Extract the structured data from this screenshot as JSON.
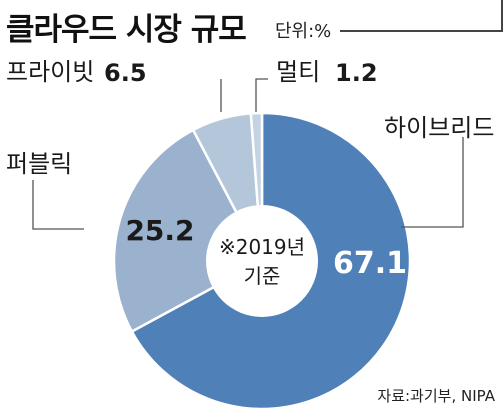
{
  "header": {
    "title": "클라우드 시장 규모",
    "unit": "단위:%"
  },
  "center": {
    "line1": "※2019년",
    "line2": "기준"
  },
  "source": "자료:과기부, NIPA",
  "colors": {
    "hybrid": "#4f81b8",
    "public": "#9ab2ce",
    "private": "#b4c6da",
    "multi": "#c4d3e3"
  },
  "chart_data": {
    "type": "pie",
    "donut": true,
    "title": "클라우드 시장 규모",
    "unit": "%",
    "slices": [
      {
        "key": "hybrid",
        "label": "하이브리드",
        "value": 67.1
      },
      {
        "key": "public",
        "label": "퍼블릭",
        "value": 25.2
      },
      {
        "key": "private",
        "label": "프라이빗",
        "value": 6.5
      },
      {
        "key": "multi",
        "label": "멀티",
        "value": 1.2
      }
    ]
  }
}
